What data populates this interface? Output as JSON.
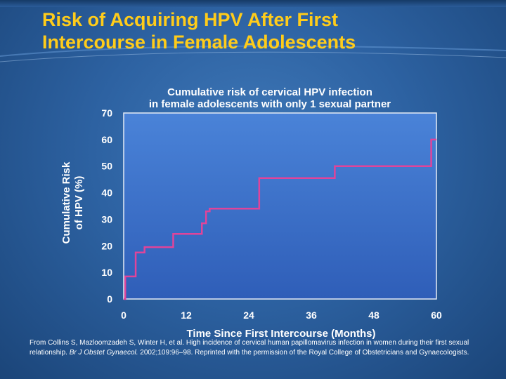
{
  "slide": {
    "title_line1": "Risk of Acquiring HPV After First",
    "title_line2": "Intercourse in Female Adolescents",
    "citation_a": "From Collins S, Mazloomzadeh S, Winter H, et al. High incidence of cervical human papillomavirus infection in women during their first sexual relationship. ",
    "citation_journal": "Br J Obstet Gynaecol.",
    "citation_b": " 2002;109:96–98. Reprinted with the permission of the Royal College of Obstetricians and Gynaecologists."
  },
  "colors": {
    "title": "#ffcc1a",
    "text": "#ffffff",
    "plot_top": "#4a83d8",
    "plot_bottom": "#2f5eb8",
    "axis": "#e6ecf5",
    "line": "#e0449a"
  },
  "chart_data": {
    "type": "line",
    "step": true,
    "title_line1": "Cumulative risk of cervical HPV infection",
    "title_line2": "in female adolescents with only 1 sexual partner",
    "xlabel": "Time Since First Intercourse (Months)",
    "ylabel_line1": "Cumulative Risk",
    "ylabel_line2": "of HPV (%)",
    "xlim": [
      0,
      60
    ],
    "ylim": [
      0,
      70
    ],
    "xticks": [
      0,
      12,
      24,
      36,
      48,
      60
    ],
    "yticks": [
      0,
      10,
      20,
      30,
      40,
      50,
      60,
      70
    ],
    "grid": false,
    "series": [
      {
        "x": [
          0,
          0.3,
          2.3,
          4.0,
          9.5,
          15.0,
          15.8,
          16.5,
          26.0,
          40.5,
          59.0,
          60
        ],
        "y": [
          0,
          8.5,
          17.5,
          19.5,
          24.5,
          28.5,
          33.0,
          34.0,
          45.5,
          50.0,
          60.0,
          60.0
        ]
      }
    ]
  }
}
